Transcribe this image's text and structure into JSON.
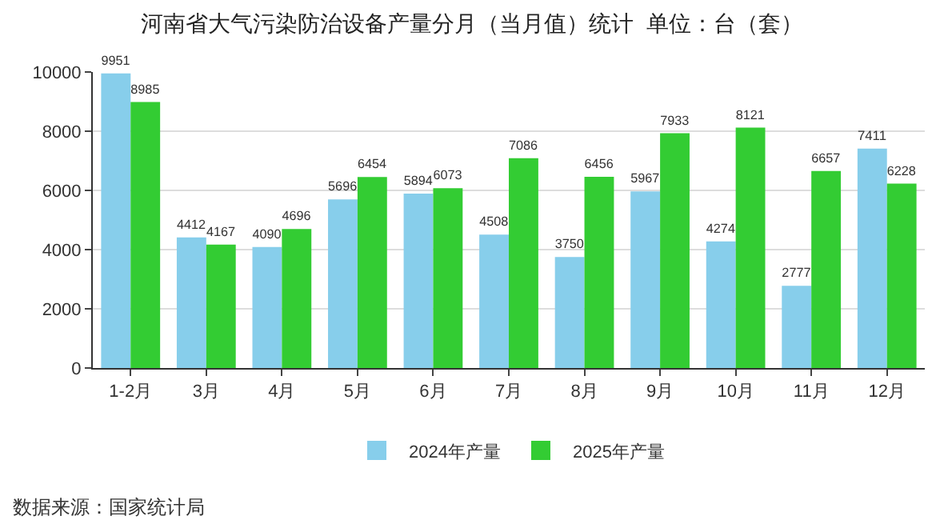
{
  "chart_data": {
    "type": "bar",
    "title": "河南省大气污染防治设备产量分月（当月值）统计  单位：台（套）",
    "categories": [
      "1-2月",
      "3月",
      "4月",
      "5月",
      "6月",
      "7月",
      "8月",
      "9月",
      "10月",
      "11月",
      "12月"
    ],
    "series": [
      {
        "name": "2024年产量",
        "color": "#87ceeb",
        "values": [
          9951,
          4412,
          4090,
          5696,
          5894,
          4508,
          3750,
          5967,
          4274,
          2777,
          7411
        ]
      },
      {
        "name": "2025年产量",
        "color": "#33cc33",
        "values": [
          8985,
          4167,
          4696,
          6454,
          6073,
          7086,
          6456,
          7933,
          8121,
          6657,
          6228
        ]
      }
    ],
    "ylim": [
      0,
      10000
    ],
    "yticks": [
      0,
      2000,
      4000,
      6000,
      8000,
      10000
    ],
    "grid": "y",
    "legend": "bottom",
    "data_labels": true,
    "annotations": [
      "数据来源：国家统计局"
    ]
  }
}
